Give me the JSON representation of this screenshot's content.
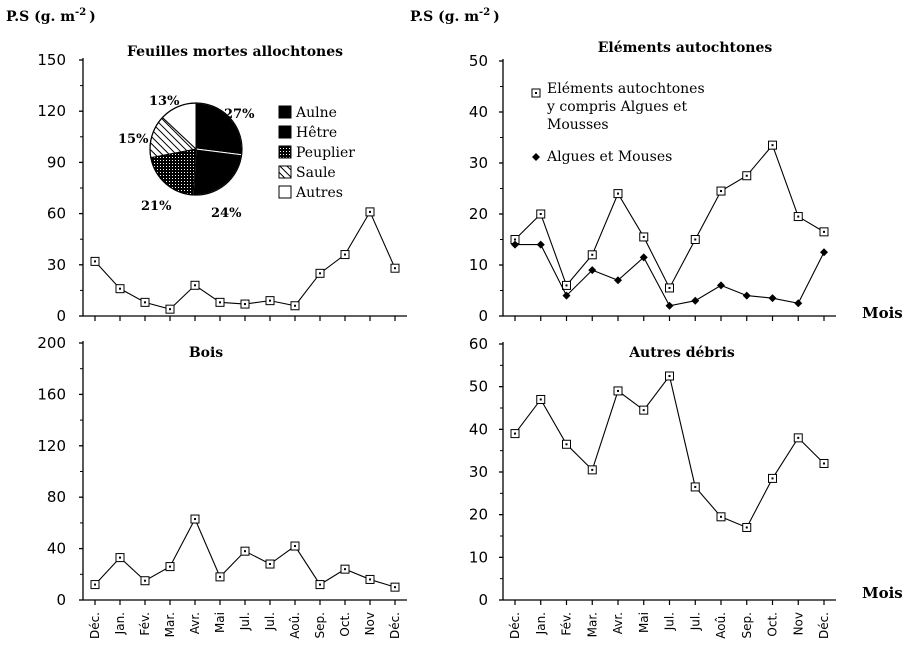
{
  "header": {
    "left_unit": "P.S (g. m",
    "right_unit": "P.S (g. m",
    "unit_exponent": "-2",
    "close_paren": ")"
  },
  "mois_label": "Mois",
  "chart_data": [
    {
      "id": "feuilles",
      "type": "line",
      "title": "Feuilles mortes allochtones",
      "ylabel": "P.S (g. m-2)",
      "x": [
        "Déc.",
        "Jan.",
        "Fév.",
        "Mar.",
        "Avr.",
        "Mai",
        "Jul.",
        "Jul.",
        "Aoû.",
        "Sep.",
        "Oct.",
        "Nov",
        "Déc."
      ],
      "ylim": [
        0,
        150
      ],
      "yticks": [
        0,
        30,
        60,
        90,
        120,
        150
      ],
      "series": [
        {
          "marker": "square",
          "values": [
            32,
            16,
            8,
            4,
            18,
            8,
            7,
            9,
            6,
            25,
            36,
            61,
            28
          ]
        }
      ],
      "pie": {
        "slices": [
          {
            "label": "Aulne",
            "percent": 27,
            "pattern": "solid"
          },
          {
            "label": "Hêtre",
            "percent": 24,
            "pattern": "solid"
          },
          {
            "label": "Peuplier",
            "percent": 21,
            "pattern": "dots"
          },
          {
            "label": "Saule",
            "percent": 15,
            "pattern": "hatch"
          },
          {
            "label": "Autres",
            "percent": 13,
            "pattern": "white"
          }
        ],
        "percent_labels": [
          "27%",
          "24%",
          "21%",
          "15%",
          "13%"
        ]
      }
    },
    {
      "id": "autochtones",
      "type": "line",
      "title": "Eléments autochtones",
      "ylabel": "P.S (g. m-2)",
      "xlabel": "Mois",
      "x": [
        "Déc.",
        "Jan.",
        "Fév.",
        "Mar.",
        "Avr.",
        "Mai",
        "Jul.",
        "Jul.",
        "Aoû.",
        "Sep.",
        "Oct.",
        "Nov",
        "Déc."
      ],
      "ylim": [
        0,
        50
      ],
      "yticks": [
        0,
        10,
        20,
        30,
        40,
        50
      ],
      "series": [
        {
          "name": "Eléments autochtones y compris Algues et Mousses",
          "marker": "square",
          "values": [
            15,
            20,
            6,
            12,
            24,
            15.5,
            5.5,
            15,
            24.5,
            27.5,
            33.5,
            19.5,
            16.5
          ]
        },
        {
          "name": "Algues et Mouses",
          "marker": "diamond",
          "values": [
            14,
            14,
            4,
            9,
            7,
            11.5,
            2,
            3,
            6,
            4,
            3.5,
            2.5,
            12.5
          ]
        }
      ],
      "legend": [
        {
          "lines": [
            "Eléments autochtones",
            "y compris Algues et",
            "Mousses"
          ]
        },
        {
          "lines": [
            "Algues et Mouses"
          ]
        }
      ]
    },
    {
      "id": "bois",
      "type": "line",
      "title": "Bois",
      "x": [
        "Déc.",
        "Jan.",
        "Fév.",
        "Mar.",
        "Avr.",
        "Mai",
        "Jul.",
        "Jul.",
        "Aoû.",
        "Sep.",
        "Oct.",
        "Nov",
        "Déc."
      ],
      "ylim": [
        0,
        200
      ],
      "yticks": [
        0,
        40,
        80,
        120,
        160,
        200
      ],
      "series": [
        {
          "marker": "square",
          "values": [
            12,
            33,
            15,
            26,
            63,
            18,
            38,
            28,
            42,
            12,
            24,
            16,
            10
          ]
        }
      ]
    },
    {
      "id": "autres",
      "type": "line",
      "title": "Autres débris",
      "xlabel": "Mois",
      "x": [
        "Déc.",
        "Jan.",
        "Fév.",
        "Mar.",
        "Avr.",
        "Mai",
        "Jul.",
        "Jul.",
        "Aoû.",
        "Sep.",
        "Oct.",
        "Nov",
        "Déc."
      ],
      "ylim": [
        0,
        60
      ],
      "yticks": [
        0,
        10,
        20,
        30,
        40,
        50,
        60
      ],
      "series": [
        {
          "marker": "square",
          "values": [
            39,
            47,
            36.5,
            30.5,
            49,
            44.5,
            52.5,
            26.5,
            19.5,
            17,
            28.5,
            38,
            32
          ]
        }
      ]
    }
  ]
}
